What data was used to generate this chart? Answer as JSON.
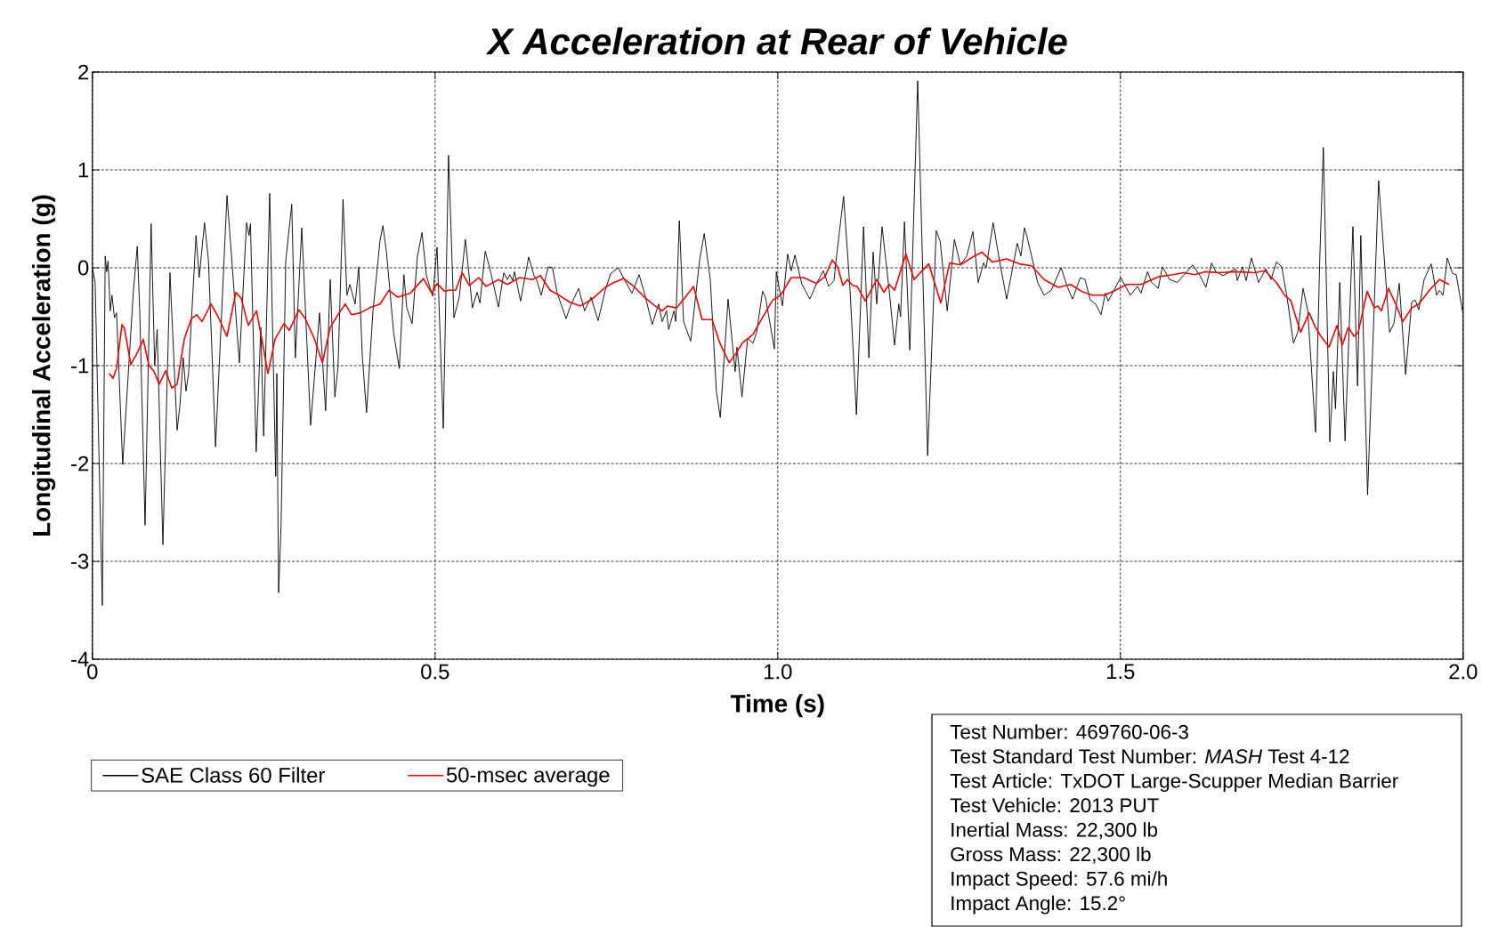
{
  "chart_data": {
    "type": "line",
    "title": "X Acceleration at Rear of Vehicle",
    "xlabel": "Time (s)",
    "ylabel": "Longitudinal Acceleration (g)",
    "xlim": [
      0,
      2
    ],
    "ylim": [
      -4,
      2
    ],
    "xticks": [
      0,
      0.5,
      {
        "value": 1,
        "label": "1.0"
      },
      1.5,
      {
        "value": 2,
        "label": "2.0"
      }
    ],
    "yticks": [
      -4,
      -3,
      -2,
      -1,
      0,
      1,
      2
    ],
    "grid": true,
    "legend": "bottom left",
    "annotations": [
      "Test Number: 469760-06-3",
      "Test Standard Test Number: *MASH* Test 4-12",
      "Test Article: TxDOT Large-Scupper Median Barrier",
      "Test Vehicle: 2013 PUT",
      "Inertial Mass: 22,300 lb",
      "Gross Mass: 22,300 lb",
      "Impact Speed: 57.6 mi/h",
      "Impact Angle: 15.2°"
    ],
    "series": [
      {
        "name": "SAE Class 60 Filter",
        "color": "#000000",
        "x": [
          0,
          0.004,
          0.0145,
          0.0187,
          0.0208,
          0.0229,
          0.026,
          0.0286,
          0.0322,
          0.0353,
          0.0442,
          0.0561,
          0.0597,
          0.0655,
          0.0691,
          0.0769,
          0.0857,
          0.0909,
          0.0945,
          0.1029,
          0.1132,
          0.1236,
          0.1278,
          0.1325,
          0.1366,
          0.1403,
          0.1512,
          0.1558,
          0.1636,
          0.1694,
          0.1797,
          0.1964,
          0.2145,
          0.2249,
          0.2286,
          0.2306,
          0.239,
          0.2457,
          0.2499,
          0.2587,
          0.2675,
          0.2691,
          0.2717,
          0.2753,
          0.2821,
          0.2909,
          0.2961,
          0.3055,
          0.3184,
          0.3314,
          0.3403,
          0.347,
          0.3538,
          0.3584,
          0.3657,
          0.3714,
          0.3756,
          0.3834,
          0.3886,
          0.3938,
          0.4,
          0.4094,
          0.4197,
          0.4239,
          0.4291,
          0.4395,
          0.4478,
          0.4545,
          0.4587,
          0.4665,
          0.4743,
          0.481,
          0.4873,
          0.4966,
          0.5029,
          0.512,
          0.5197,
          0.5275,
          0.5353,
          0.5442,
          0.5545,
          0.5613,
          0.5655,
          0.5732,
          0.581,
          0.5925,
          0.6003,
          0.6055,
          0.6091,
          0.6133,
          0.6159,
          0.6247,
          0.6366,
          0.6444,
          0.6486,
          0.6548,
          0.6652,
          0.6714,
          0.6782,
          0.6912,
          0.6964,
          0.7094,
          0.7182,
          0.7275,
          0.7379,
          0.7483,
          0.7561,
          0.7675,
          0.7769,
          0.7873,
          0.7977,
          0.8055,
          0.8169,
          0.8262,
          0.8314,
          0.8377,
          0.8408,
          0.8486,
          0.8512,
          0.8564,
          0.8626,
          0.873,
          0.886,
          0.8927,
          0.9016,
          0.9104,
          0.9161,
          0.9275,
          0.9343,
          0.9379,
          0.9405,
          0.9478,
          0.9561,
          0.9639,
          0.9691,
          0.9779,
          0.9821,
          0.9951,
          0.9979,
          1.0068,
          1.0145,
          1.0197,
          1.025,
          1.0353,
          1.0468,
          1.0561,
          1.0665,
          1.0743,
          1.0821,
          1.0862,
          1.0961,
          1.1055,
          1.1148,
          1.1252,
          1.133,
          1.1392,
          1.1444,
          1.1522,
          1.1626,
          1.1704,
          1.1766,
          1.1792,
          1.1849,
          1.1927,
          1.2042,
          1.2187,
          1.2312,
          1.237,
          1.2473,
          1.2577,
          1.2665,
          1.2758,
          1.2847,
          1.2925,
          1.3003,
          1.304,
          1.3143,
          1.3236,
          1.334,
          1.3496,
          1.3548,
          1.36,
          1.3636,
          1.3704,
          1.3792,
          1.3886,
          1.399,
          1.4135,
          1.4223,
          1.4301,
          1.4415,
          1.4483,
          1.4561,
          1.4639,
          1.4717,
          1.4779,
          1.4821,
          1.5003,
          1.5146,
          1.5249,
          1.53,
          1.5395,
          1.5457,
          1.5551,
          1.5613,
          1.5717,
          1.5831,
          1.6055,
          1.6159,
          1.6247,
          1.633,
          1.6392,
          1.6496,
          1.6678,
          1.6704,
          1.6782,
          1.6834,
          1.6912,
          1.7016,
          1.712,
          1.7198,
          1.7276,
          1.7353,
          1.7431,
          1.7525,
          1.7587,
          1.7665,
          1.7733,
          1.7847,
          1.7909,
          1.7961,
          1.8055,
          1.8107,
          1.8138,
          1.82,
          1.8278,
          1.8392,
          1.846,
          1.8507,
          1.8606,
          1.8767,
          1.8927,
          1.899,
          1.9068,
          1.9161,
          1.925,
          1.9301,
          1.9353,
          1.9431,
          1.9535,
          1.9613,
          1.9655,
          1.9707,
          1.9769,
          1.9847,
          1.9899,
          1.999
        ],
        "values": [
          0,
          -0.15,
          -3.45,
          0.12,
          -0.04,
          0.07,
          -0.44,
          -0.28,
          -0.51,
          -0.46,
          -2.01,
          -0.66,
          -0.25,
          0.22,
          -0.44,
          -2.63,
          0.45,
          -1.0,
          -0.63,
          -2.83,
          -0.05,
          -1.66,
          -1.4,
          -0.92,
          -1.26,
          -1.08,
          0.33,
          -0.1,
          0.46,
          0.07,
          -1.83,
          0.74,
          -0.97,
          0.46,
          0.33,
          0.45,
          -1.88,
          -0.61,
          -1.72,
          0.76,
          -2.13,
          -1.08,
          -3.32,
          -2.63,
          0.07,
          0.65,
          -0.92,
          0.41,
          -1.61,
          -0.46,
          -1.46,
          -0.12,
          -1.32,
          -1.01,
          0.7,
          -0.28,
          -0.17,
          -0.37,
          0.01,
          -0.9,
          -1.48,
          -0.44,
          0.28,
          0.43,
          0.16,
          -0.66,
          -1.03,
          -0.07,
          -0.41,
          -0.57,
          0.12,
          0.36,
          -0.08,
          -0.29,
          0.21,
          -1.64,
          1.15,
          -0.51,
          -0.3,
          0.29,
          -0.41,
          -0.25,
          -0.36,
          0.17,
          -0.04,
          -0.4,
          -0.05,
          -0.12,
          -0.07,
          -0.13,
          -0.04,
          -0.34,
          0.11,
          -0.08,
          -0.13,
          -0.28,
          0.01,
          0.0,
          -0.26,
          -0.52,
          -0.41,
          -0.21,
          -0.44,
          -0.3,
          -0.54,
          -0.23,
          -0.06,
          0.0,
          -0.13,
          -0.26,
          -0.07,
          -0.26,
          -0.58,
          -0.37,
          -0.55,
          -0.44,
          -0.63,
          -0.44,
          -0.55,
          0.48,
          -0.55,
          -0.75,
          0.08,
          0.35,
          -0.12,
          -1.26,
          -1.53,
          -0.32,
          -0.81,
          -1.06,
          -0.81,
          -1.32,
          -0.72,
          -0.77,
          -0.66,
          -0.24,
          -0.3,
          -0.83,
          -0.04,
          -0.39,
          0.14,
          -0.03,
          0.13,
          -0.17,
          -0.32,
          -0.17,
          -0.03,
          -0.19,
          -0.13,
          0.14,
          0.73,
          -0.23,
          -1.5,
          0.42,
          -0.92,
          0.16,
          -0.37,
          0.42,
          -0.23,
          -0.79,
          -0.37,
          -0.5,
          0.47,
          -0.84,
          1.91,
          -1.92,
          0.38,
          0.27,
          -0.44,
          0.29,
          0.03,
          0.12,
          0.37,
          -0.15,
          0.05,
          0.0,
          0.46,
          0.07,
          -0.32,
          0.25,
          0.12,
          0.41,
          0.32,
          0.12,
          -0.15,
          -0.28,
          -0.23,
          0.0,
          -0.19,
          -0.32,
          -0.1,
          -0.12,
          -0.33,
          -0.37,
          -0.48,
          -0.26,
          -0.34,
          -0.1,
          -0.28,
          -0.19,
          -0.26,
          -0.04,
          -0.15,
          -0.21,
          0.01,
          -0.12,
          -0.15,
          0.03,
          -0.08,
          -0.2,
          0.05,
          -0.04,
          -0.08,
          -0.01,
          -0.13,
          0.01,
          -0.13,
          0.1,
          -0.15,
          -0.01,
          -0.12,
          0.06,
          0.01,
          -0.3,
          -0.77,
          -0.66,
          -0.21,
          -0.44,
          -1.68,
          0.1,
          1.23,
          -1.78,
          -1.06,
          -1.44,
          -0.15,
          -1.77,
          0.42,
          -1.21,
          0.33,
          -2.32,
          0.89,
          -0.66,
          -0.57,
          -0.16,
          -1.09,
          -0.35,
          -0.33,
          -0.43,
          -0.12,
          0.04,
          -0.28,
          -0.23,
          -0.28,
          0.1,
          -0.06,
          -0.07,
          -0.44
        ]
      },
      {
        "name": "50-msec average",
        "color": "#ff0000",
        "x": [
          0.0249,
          0.0301,
          0.0353,
          0.0431,
          0.0468,
          0.0561,
          0.0655,
          0.0743,
          0.0821,
          0.0899,
          0.0977,
          0.107,
          0.1158,
          0.1236,
          0.134,
          0.1444,
          0.1522,
          0.16,
          0.173,
          0.1834,
          0.1964,
          0.2094,
          0.2171,
          0.2275,
          0.2395,
          0.2483,
          0.2561,
          0.2665,
          0.2795,
          0.2873,
          0.3013,
          0.3106,
          0.3236,
          0.3356,
          0.347,
          0.3574,
          0.3688,
          0.3782,
          0.3912,
          0.4042,
          0.4197,
          0.4327,
          0.4457,
          0.4639,
          0.4831,
          0.4951,
          0.5029,
          0.5138,
          0.5197,
          0.5301,
          0.5395,
          0.5499,
          0.5639,
          0.5743,
          0.5925,
          0.6055,
          0.6236,
          0.6418,
          0.6538,
          0.6678,
          0.6808,
          0.6964,
          0.712,
          0.7275,
          0.7483,
          0.7613,
          0.7753,
          0.7899,
          0.8055,
          0.821,
          0.8314,
          0.8392,
          0.8522,
          0.8652,
          0.8771,
          0.8896,
          0.9042,
          0.9156,
          0.9291,
          0.9405,
          0.9483,
          0.9639,
          0.9769,
          0.9925,
          1.0042,
          1.0197,
          1.0379,
          1.0561,
          1.0691,
          1.0795,
          1.0873,
          1.0951,
          1.1018,
          1.1091,
          1.1158,
          1.1278,
          1.1444,
          1.1548,
          1.1626,
          1.1704,
          1.187,
          1.199,
          1.2094,
          1.2203,
          1.2379,
          1.2509,
          1.2665,
          1.2821,
          1.2977,
          1.3132,
          1.334,
          1.3522,
          1.3704,
          1.3886,
          1.4094,
          1.4275,
          1.4431,
          1.4587,
          1.4769,
          1.4925,
          1.5094,
          1.5302,
          1.5561,
          1.5769,
          1.5925,
          1.6081,
          1.6237,
          1.6444,
          1.6678,
          1.6964,
          1.711,
          1.7276,
          1.7405,
          1.7483,
          1.7629,
          1.7753,
          1.7847,
          1.7925,
          1.8044,
          1.8159,
          1.8237,
          1.8325,
          1.8408,
          1.847,
          1.86,
          1.8704,
          1.8756,
          1.8808,
          1.8912,
          1.9016,
          1.912,
          1.9249,
          1.9353,
          1.9509,
          1.9655,
          1.9795
        ],
        "values": [
          -1.08,
          -1.13,
          -1.03,
          -0.58,
          -0.62,
          -0.99,
          -0.87,
          -0.73,
          -0.99,
          -1.06,
          -1.19,
          -1.05,
          -1.23,
          -1.19,
          -0.73,
          -0.52,
          -0.48,
          -0.55,
          -0.37,
          -0.5,
          -0.7,
          -0.25,
          -0.31,
          -0.59,
          -0.44,
          -0.77,
          -1.08,
          -0.73,
          -0.57,
          -0.64,
          -0.43,
          -0.52,
          -0.72,
          -0.97,
          -0.61,
          -0.49,
          -0.37,
          -0.48,
          -0.46,
          -0.41,
          -0.37,
          -0.23,
          -0.3,
          -0.26,
          -0.11,
          -0.26,
          -0.16,
          -0.24,
          -0.23,
          -0.23,
          -0.05,
          -0.18,
          -0.1,
          -0.19,
          -0.12,
          -0.17,
          -0.1,
          -0.12,
          -0.08,
          -0.23,
          -0.28,
          -0.35,
          -0.39,
          -0.33,
          -0.2,
          -0.15,
          -0.11,
          -0.19,
          -0.3,
          -0.39,
          -0.44,
          -0.39,
          -0.41,
          -0.3,
          -0.19,
          -0.53,
          -0.53,
          -0.77,
          -0.97,
          -0.86,
          -0.77,
          -0.68,
          -0.52,
          -0.33,
          -0.28,
          -0.1,
          -0.1,
          -0.16,
          -0.09,
          0.08,
          0.01,
          -0.18,
          -0.12,
          -0.18,
          -0.19,
          -0.34,
          -0.12,
          -0.25,
          -0.17,
          -0.23,
          0.14,
          -0.12,
          -0.04,
          0.04,
          -0.36,
          0.05,
          0.03,
          0.1,
          0.16,
          0.06,
          0.09,
          0.04,
          0.02,
          -0.12,
          -0.2,
          -0.17,
          -0.24,
          -0.28,
          -0.28,
          -0.23,
          -0.17,
          -0.17,
          -0.09,
          -0.07,
          -0.05,
          -0.07,
          -0.04,
          -0.05,
          -0.04,
          -0.05,
          -0.03,
          -0.15,
          -0.29,
          -0.33,
          -0.66,
          -0.46,
          -0.61,
          -0.7,
          -0.81,
          -0.59,
          -0.79,
          -0.61,
          -0.7,
          -0.66,
          -0.24,
          -0.41,
          -0.39,
          -0.44,
          -0.21,
          -0.37,
          -0.55,
          -0.41,
          -0.37,
          -0.23,
          -0.12,
          -0.17
        ]
      }
    ]
  }
}
